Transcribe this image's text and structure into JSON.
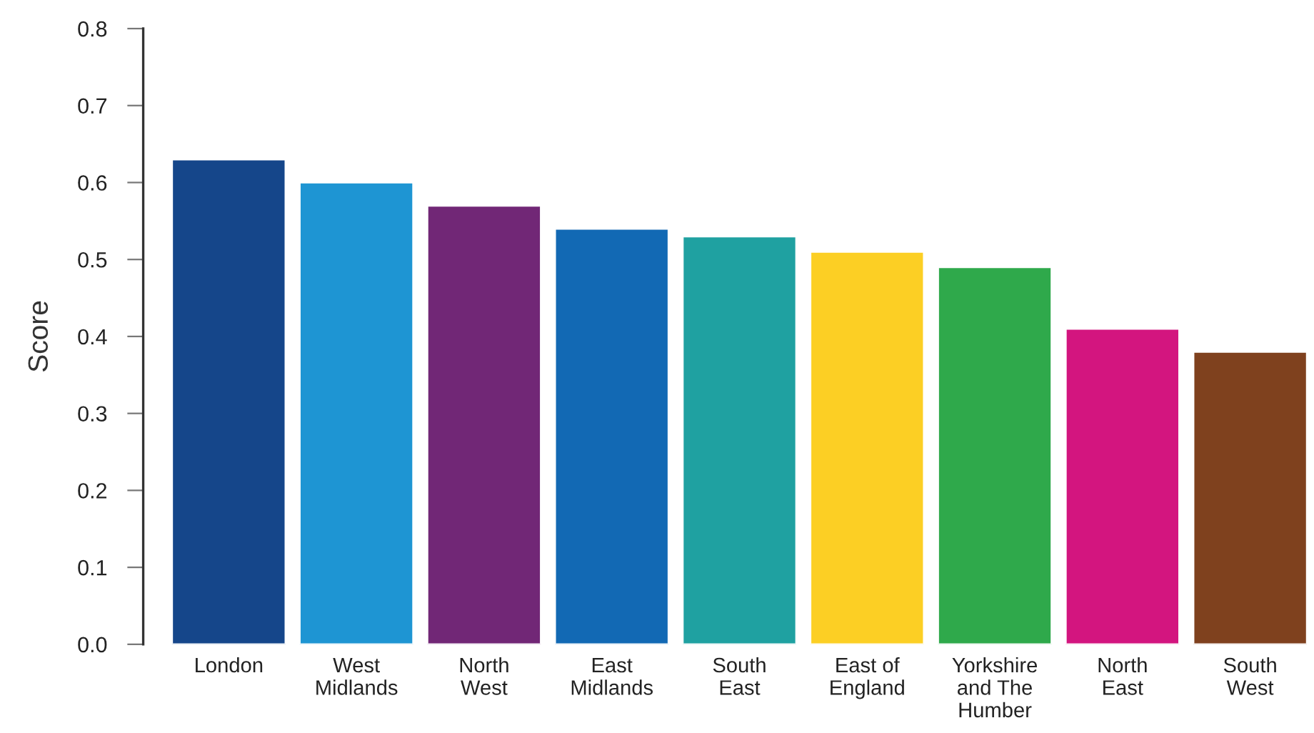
{
  "chart_data": {
    "type": "bar",
    "ylabel": "Score",
    "categories": [
      "London",
      "West\nMidlands",
      "North\nWest",
      "East\nMidlands",
      "South\nEast",
      "East of\nEngland",
      "Yorkshire\nand The\nHumber",
      "North\nEast",
      "South\nWest"
    ],
    "values": [
      0.63,
      0.6,
      0.57,
      0.54,
      0.53,
      0.51,
      0.49,
      0.41,
      0.38
    ],
    "colors": [
      "#15468a",
      "#1e95d3",
      "#712776",
      "#1269b4",
      "#1fa1a1",
      "#fccf24",
      "#2fa94b",
      "#d3157f",
      "#7f411e"
    ],
    "ylim": [
      0,
      0.8
    ],
    "yticks": [
      {
        "value": 0,
        "label": "0.0"
      },
      0.1,
      0.2,
      0.3,
      0.4,
      0.5,
      0.6,
      0.7,
      0.8
    ],
    "grid": false,
    "legend": false
  }
}
